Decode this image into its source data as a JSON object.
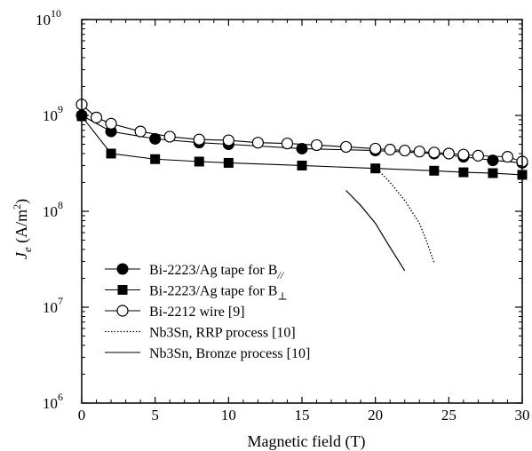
{
  "chart_data": {
    "type": "line",
    "xlabel": "Magnetic field (T)",
    "ylabel": "Je (A/m2)",
    "ylabel_parts": {
      "symbol": "J",
      "subscript": "e",
      "open": " (A/m",
      "superscript": "2",
      "close": ")"
    },
    "xlim": [
      0,
      30
    ],
    "ylim": [
      1000000,
      10000000000
    ],
    "yscale": "log",
    "x_ticks": [
      "0",
      "5",
      "10",
      "15",
      "20",
      "25",
      "30"
    ],
    "y_ticks": [
      {
        "base": "10",
        "exp": "6"
      },
      {
        "base": "10",
        "exp": "7"
      },
      {
        "base": "10",
        "exp": "8"
      },
      {
        "base": "10",
        "exp": "9"
      },
      {
        "base": "10",
        "exp": "10"
      }
    ],
    "legend_position": "bottom-left",
    "series": [
      {
        "name": "Bi-2223/Ag tape for B//",
        "legend": {
          "text": "Bi-2223/Ag tape for B",
          "sub": "//"
        },
        "marker": "filled-circle",
        "line": "solid",
        "x": [
          0,
          2,
          5,
          8,
          10,
          15,
          20,
          24,
          26,
          28,
          30
        ],
        "y": [
          1000000000,
          680000000,
          570000000,
          520000000,
          500000000,
          450000000,
          430000000,
          400000000,
          370000000,
          340000000,
          320000000
        ]
      },
      {
        "name": "Bi-2223/Ag tape for B⊥",
        "legend": {
          "text": "Bi-2223/Ag tape for B",
          "sub": "⊥"
        },
        "marker": "filled-square",
        "line": "solid",
        "x": [
          0,
          2,
          5,
          8,
          10,
          15,
          20,
          24,
          26,
          28,
          30
        ],
        "y": [
          980000000,
          400000000,
          350000000,
          330000000,
          320000000,
          300000000,
          280000000,
          265000000,
          255000000,
          250000000,
          240000000
        ]
      },
      {
        "name": "Bi-2212 wire [9]",
        "legend": {
          "text": "Bi-2212 wire [9]",
          "sub": ""
        },
        "marker": "open-circle",
        "line": "solid",
        "x": [
          0,
          1,
          2,
          4,
          6,
          8,
          10,
          12,
          14,
          16,
          18,
          20,
          21,
          22,
          23,
          24,
          25,
          26,
          27,
          29,
          30
        ],
        "y": [
          1300000000,
          950000000,
          820000000,
          680000000,
          600000000,
          560000000,
          550000000,
          520000000,
          510000000,
          490000000,
          470000000,
          450000000,
          440000000,
          430000000,
          420000000,
          410000000,
          400000000,
          390000000,
          380000000,
          370000000,
          330000000
        ]
      },
      {
        "name": "Nb3Sn, RRP process [10]",
        "legend": {
          "text": "Nb3Sn, RRP process [10]",
          "sub": ""
        },
        "marker": "none",
        "line": "dotted",
        "x": [
          20,
          21,
          22,
          23,
          23.5,
          24
        ],
        "y": [
          290000000,
          200000000,
          130000000,
          75000000,
          48000000,
          29000000
        ]
      },
      {
        "name": "Nb3Sn, Bronze process [10]",
        "legend": {
          "text": "Nb3Sn, Bronze process [10]",
          "sub": ""
        },
        "marker": "none",
        "line": "solid-thin",
        "x": [
          18,
          19,
          20,
          21,
          22
        ],
        "y": [
          165000000,
          115000000,
          75000000,
          42000000,
          24000000
        ]
      }
    ]
  }
}
